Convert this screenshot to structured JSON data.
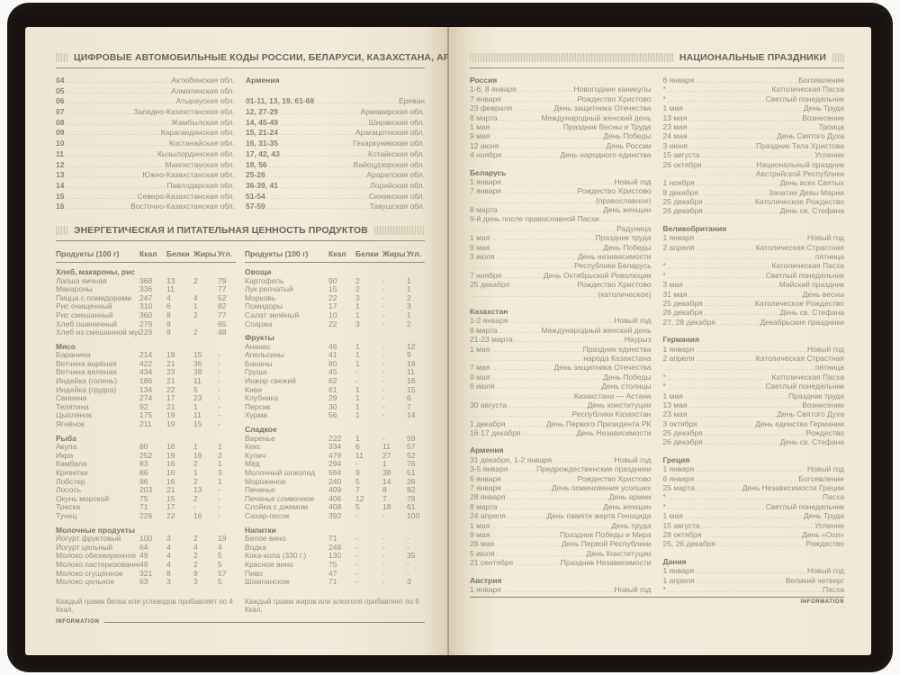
{
  "left_page": {
    "codes_section": {
      "title": "ЦИФРОВЫЕ АВТОМОБИЛЬНЫЕ КОДЫ РОССИИ, БЕЛАРУСИ, КАЗАХСТАНА, АРМЕНИИ",
      "kazakhstan_rows": [
        [
          "04",
          "Актюбинская обл."
        ],
        [
          "05",
          "Алматинская обл."
        ],
        [
          "06",
          "Атырауская обл."
        ],
        [
          "07",
          "Западно-Казахстанская обл."
        ],
        [
          "08",
          "Жамбылская обл."
        ],
        [
          "09",
          "Карагандинская обл."
        ],
        [
          "10",
          "Костанайская обл."
        ],
        [
          "11",
          "Кызылординская обл."
        ],
        [
          "12",
          "Мангистауская обл."
        ],
        [
          "13",
          "Южно-Казахстанская обл."
        ],
        [
          "14",
          "Павлодарская обл."
        ],
        [
          "15",
          "Северо-Казахстанская обл."
        ],
        [
          "16",
          "Восточно-Казахстанская обл."
        ]
      ],
      "armenia_header": "Армения",
      "armenia_rows": [
        [
          "01-11, 13, 19, 61-68",
          "Ереван"
        ],
        [
          "12, 27-29",
          "Армавирская обл."
        ],
        [
          "14, 45-49",
          "Ширакская обл."
        ],
        [
          "15, 21-24",
          "Арагацотнская обл."
        ],
        [
          "16, 31-35",
          "Гехаркуникская обл."
        ],
        [
          "17, 42, 43",
          "Котайкская обл."
        ],
        [
          "18, 56",
          "Вайоцдзорская обл."
        ],
        [
          "25-26",
          "Араратская обл."
        ],
        [
          "36-39, 41",
          "Лорийская обл."
        ],
        [
          "51-54",
          "Сюникская обл."
        ],
        [
          "57-59",
          "Тавушская обл."
        ]
      ]
    },
    "nutrition_section": {
      "title": "ЭНЕРГЕТИЧЕСКАЯ И ПИТАТЕЛЬНАЯ ЦЕННОСТЬ ПРОДУКТОВ",
      "columns": [
        "Продукты (100 г)",
        "Ккал",
        "Белки",
        "Жиры",
        "Угл."
      ],
      "left_groups": [
        {
          "title": "Хлеб, макароны, рис",
          "rows": [
            [
              "Лапша яичная",
              "368",
              "13",
              "2",
              "79"
            ],
            [
              "Макароны",
              "336",
              "11",
              "",
              "77"
            ],
            [
              "Пицца с помидорами",
              "247",
              "4",
              "4",
              "52"
            ],
            [
              "Рис очищенный",
              "310",
              "6",
              "1",
              "82"
            ],
            [
              "Рис смешанный",
              "360",
              "8",
              "2",
              "77"
            ],
            [
              "Хлеб пшеничный",
              "279",
              "9",
              "",
              "65"
            ],
            [
              "Хлеб из смешанной муки",
              "229",
              "9",
              "2",
              "48"
            ]
          ]
        },
        {
          "title": "Мясо",
          "rows": [
            [
              "Баранина",
              "214",
              "19",
              "15",
              "-"
            ],
            [
              "Ветчина варёная",
              "422",
              "21",
              "36",
              "-"
            ],
            [
              "Ветчина вяленая",
              "434",
              "23",
              "38",
              "-"
            ],
            [
              "Индейка (голень)",
              "186",
              "21",
              "11",
              "-"
            ],
            [
              "Индейка (грудка)",
              "134",
              "22",
              "5",
              "-"
            ],
            [
              "Свинина",
              "274",
              "17",
              "23",
              "-"
            ],
            [
              "Телятина",
              "92",
              "21",
              "1",
              "-"
            ],
            [
              "Цыплёнок",
              "175",
              "19",
              "11",
              "-"
            ],
            [
              "Ягнёнок",
              "211",
              "19",
              "15",
              "-"
            ]
          ]
        },
        {
          "title": "Рыба",
          "rows": [
            [
              "Акула",
              "80",
              "16",
              "1",
              "1"
            ],
            [
              "Икра",
              "252",
              "19",
              "19",
              "2"
            ],
            [
              "Камбала",
              "83",
              "16",
              "2",
              "1"
            ],
            [
              "Креветки",
              "86",
              "16",
              "1",
              "3"
            ],
            [
              "Лобстер",
              "86",
              "16",
              "2",
              "1"
            ],
            [
              "Лосось",
              "203",
              "21",
              "13",
              "-"
            ],
            [
              "Окунь морской",
              "75",
              "15",
              "2",
              "-"
            ],
            [
              "Треска",
              "71",
              "17",
              "-",
              "-"
            ],
            [
              "Тунец",
              "226",
              "22",
              "16",
              "-"
            ]
          ]
        },
        {
          "title": "Молочные продукты",
          "rows": [
            [
              "Йогурт фруктовый",
              "100",
              "3",
              "2",
              "19"
            ],
            [
              "Йогурт цельный",
              "64",
              "4",
              "4",
              "4"
            ],
            [
              "Молоко обезжиренное",
              "49",
              "4",
              "2",
              "5"
            ],
            [
              "Молоко пастеризованное",
              "49",
              "4",
              "2",
              "5"
            ],
            [
              "Молоко сгущённое",
              "321",
              "8",
              "9",
              "57"
            ],
            [
              "Молоко цельное",
              "63",
              "3",
              "3",
              "5"
            ]
          ]
        }
      ],
      "right_groups": [
        {
          "title": "Овощи",
          "rows": [
            [
              "Картофель",
              "90",
              "2",
              "-",
              "1"
            ],
            [
              "Лук репчатый",
              "15",
              "2",
              "-",
              "1"
            ],
            [
              "Морковь",
              "22",
              "3",
              "-",
              "2"
            ],
            [
              "Помидоры",
              "17",
              "1",
              "-",
              "3"
            ],
            [
              "Салат зелёный",
              "10",
              "1",
              "-",
              "1"
            ],
            [
              "Спаржа",
              "22",
              "3",
              "-",
              "2"
            ]
          ]
        },
        {
          "title": "Фрукты",
          "rows": [
            [
              "Ананас",
              "46",
              "1",
              "-",
              "12"
            ],
            [
              "Апельсины",
              "41",
              "1",
              "-",
              "9"
            ],
            [
              "Бананы",
              "80",
              "1",
              "-",
              "19"
            ],
            [
              "Груша",
              "45",
              "-",
              "-",
              "11"
            ],
            [
              "Инжир свежий",
              "62",
              "-",
              "-",
              "16"
            ],
            [
              "Киви",
              "61",
              "1",
              "-",
              "15"
            ],
            [
              "Клубника",
              "29",
              "1",
              "-",
              "6"
            ],
            [
              "Персик",
              "30",
              "1",
              "-",
              "7"
            ],
            [
              "Хурма",
              "56",
              "1",
              "-",
              "14"
            ]
          ]
        },
        {
          "title": "Сладкое",
          "rows": [
            [
              "Варенье",
              "222",
              "1",
              "-",
              "59"
            ],
            [
              "Кекс",
              "334",
              "6",
              "11",
              "57"
            ],
            [
              "Кулич",
              "479",
              "11",
              "27",
              "52"
            ],
            [
              "Мёд",
              "294",
              "-",
              "1",
              "76"
            ],
            [
              "Молочный шоколад",
              "564",
              "9",
              "38",
              "51"
            ],
            [
              "Мороженое",
              "240",
              "5",
              "14",
              "26"
            ],
            [
              "Печенье",
              "409",
              "7",
              "8",
              "82"
            ],
            [
              "Печенье сливочное",
              "406",
              "12",
              "7",
              "78"
            ],
            [
              "Слойка с джемом",
              "408",
              "5",
              "18",
              "61"
            ],
            [
              "Сахар-песок",
              "392",
              "-",
              "-",
              "100"
            ]
          ]
        },
        {
          "title": "Напитки",
          "rows": [
            [
              "Белое вино",
              "71",
              "-",
              "-",
              "-"
            ],
            [
              "Водка",
              "248",
              "-",
              "-",
              "-"
            ],
            [
              "Кока-кола (330 г.)",
              "130",
              "-",
              "-",
              "35"
            ],
            [
              "Красное вино",
              "75",
              "-",
              "-",
              "-"
            ],
            [
              "Пиво",
              "47",
              "-",
              "-",
              "-"
            ],
            [
              "Шампанское",
              "71",
              "-",
              "-",
              "3"
            ]
          ]
        }
      ],
      "left_note": "Каждый грамм белка или углеводов прибавляет по 4 Ккал.",
      "right_note": "Каждый грамм жиров или алкоголя прибавляет по 9 Ккал."
    },
    "footer": "INFORMATION"
  },
  "right_page": {
    "title": "НАЦИОНАЛЬНЫЕ ПРАЗДНИКИ",
    "left_column": [
      {
        "country": "Россия",
        "rows": [
          [
            "1-6, 8 января",
            "Новогодние каникулы"
          ],
          [
            "7 января",
            "Рождество Христово"
          ],
          [
            "23 февраля",
            "День защитника Отечества"
          ],
          [
            "8 марта",
            "Международный женский день"
          ],
          [
            "1 мая",
            "Праздник Весны и Труда"
          ],
          [
            "9 мая",
            "День Победы"
          ],
          [
            "12 июня",
            "День России"
          ],
          [
            "4 ноября",
            "День народного единства"
          ]
        ]
      },
      {
        "country": "Беларусь",
        "rows": [
          [
            "1 января",
            "Новый год"
          ],
          [
            "7 января",
            "Рождество Христово"
          ],
          [
            "",
            "(православное)"
          ],
          [
            "8 марта",
            "День женщин"
          ],
          [
            "9-й день после православной Пасхи",
            ""
          ],
          [
            "",
            "Радуница"
          ],
          [
            "1 мая",
            "Праздник труда"
          ],
          [
            "9 мая",
            "День Победы"
          ],
          [
            "3 июля",
            "День независимости"
          ],
          [
            "",
            "Республики Беларусь"
          ],
          [
            "7 ноября",
            "День Октябрьской Революции"
          ],
          [
            "25 декабря",
            "Рождество Христово"
          ],
          [
            "",
            "(католическое)"
          ]
        ]
      },
      {
        "country": "Казахстан",
        "rows": [
          [
            "1-2 января",
            "Новый год"
          ],
          [
            "8 марта",
            "Международный женский день"
          ],
          [
            "21-23 марта",
            "Наурыз"
          ],
          [
            "1 мая",
            "Праздник единства"
          ],
          [
            "",
            "народа Казахстана"
          ],
          [
            "7 мая",
            "День защитника Отечества"
          ],
          [
            "9 мая",
            "День Победы"
          ],
          [
            "6 июля",
            "День столицы"
          ],
          [
            "",
            "Казахстана — Астана"
          ],
          [
            "30 августа",
            "День конституции"
          ],
          [
            "",
            "Республики Казахстан"
          ],
          [
            "1 декабря",
            "День Первого Президента РК"
          ],
          [
            "16-17 декабря",
            "День Независимости"
          ]
        ]
      },
      {
        "country": "Армения",
        "rows": [
          [
            "31 декабря, 1-2 января",
            "Новый год"
          ],
          [
            "3-5 января",
            "Предрождественские праздники"
          ],
          [
            "6 января",
            "Рождество Христово"
          ],
          [
            "7 января",
            "День поминовения усопших"
          ],
          [
            "28 января",
            "День армии"
          ],
          [
            "8 марта",
            "День женщин"
          ],
          [
            "24 апреля",
            "День памяти жертв Геноцида"
          ],
          [
            "1 мая",
            "День труда"
          ],
          [
            "9 мая",
            "Праздник Победы и Мира"
          ],
          [
            "28 мая",
            "День Первой Республики"
          ],
          [
            "5 июля",
            "День Конституции"
          ],
          [
            "21 сентября",
            "Праздник Независимости"
          ]
        ]
      },
      {
        "country": "Австрия",
        "rows": [
          [
            "1 января",
            "Новый год"
          ]
        ]
      }
    ],
    "right_column": [
      {
        "country": "",
        "rows": [
          [
            "6 января",
            "Богоявление"
          ],
          [
            "*",
            "Католическая Пасха"
          ],
          [
            "*",
            "Светлый понедельник"
          ],
          [
            "1 мая",
            "День Труда"
          ],
          [
            "13 мая",
            "Вознесение"
          ],
          [
            "23 мая",
            "Троица"
          ],
          [
            "24 мая",
            "День Святого Духа"
          ],
          [
            "3 июня",
            "Праздник Тела Христова"
          ],
          [
            "15 августа",
            "Успение"
          ],
          [
            "26 октября",
            "Национальный праздник"
          ],
          [
            "",
            "Австрийской Республики"
          ],
          [
            "1 ноября",
            "День всех Святых"
          ],
          [
            "8 декабря",
            "Зачатие Девы Марии"
          ],
          [
            "25 декабря",
            "Католическое Рождество"
          ],
          [
            "26 декабря",
            "День св. Стефана"
          ]
        ]
      },
      {
        "country": "Великобритания",
        "rows": [
          [
            "1 января",
            "Новый год"
          ],
          [
            "2 апреля",
            "Католическая Страстная"
          ],
          [
            "",
            "пятница"
          ],
          [
            "*",
            "Католическая Пасха"
          ],
          [
            "*",
            "Светлый понедельник"
          ],
          [
            "3 мая",
            "Майский праздник"
          ],
          [
            "31 мая",
            "День весны"
          ],
          [
            "25 декабря",
            "Католическое Рождество"
          ],
          [
            "26 декабря",
            "День св. Стефана"
          ],
          [
            "27, 28 декабря",
            "Декабрьские праздники"
          ]
        ]
      },
      {
        "country": "Германия",
        "rows": [
          [
            "1 января",
            "Новый год"
          ],
          [
            "2 апреля",
            "Католическая Страстная"
          ],
          [
            "",
            "пятница"
          ],
          [
            "*",
            "Католическая Пасха"
          ],
          [
            "*",
            "Светлый понедельник"
          ],
          [
            "1 мая",
            "Праздник труда"
          ],
          [
            "13 мая",
            "Вознесение"
          ],
          [
            "23 мая",
            "День Святого Духа"
          ],
          [
            "3 октября",
            "День единства Германии"
          ],
          [
            "25 декабря",
            "Рождество"
          ],
          [
            "26 декабря",
            "День св. Стефана"
          ]
        ]
      },
      {
        "country": "Греция",
        "rows": [
          [
            "1 января",
            "Новый год"
          ],
          [
            "6 января",
            "Богоявление"
          ],
          [
            "25 марта",
            "День Независимости Греции"
          ],
          [
            "*",
            "Пасха"
          ],
          [
            "*",
            "Светлый понедельник"
          ],
          [
            "1 мая",
            "День Труда"
          ],
          [
            "15 августа",
            "Успение"
          ],
          [
            "28 октября",
            "День «Охи»"
          ],
          [
            "25, 26 декабря",
            "Рождество"
          ]
        ]
      },
      {
        "country": "Дания",
        "rows": [
          [
            "1 января",
            "Новый год"
          ],
          [
            "1 апреля",
            "Великий четверг"
          ],
          [
            "*",
            "Пасха"
          ]
        ]
      }
    ],
    "footer": "INFORMATION"
  }
}
